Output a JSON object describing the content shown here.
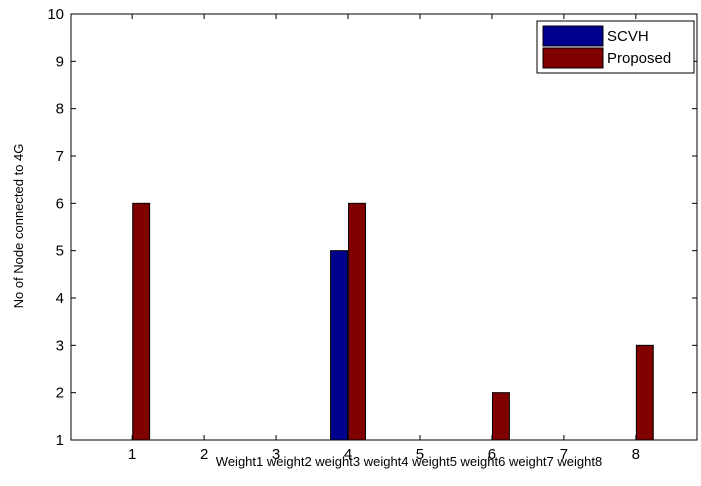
{
  "chart_data": {
    "type": "bar",
    "x": [
      1,
      2,
      3,
      4,
      5,
      6,
      7,
      8
    ],
    "xticks": [
      "1",
      "2",
      "3",
      "4",
      "5",
      "6",
      "7",
      "8"
    ],
    "xlabel": "Weight1 weight2 weight3 weight4 weight5 weight6 weight7 weight8",
    "ylabel": "No of Node connected to 4G",
    "ylim": [
      1,
      10
    ],
    "yticks": [
      1,
      2,
      3,
      4,
      5,
      6,
      7,
      8,
      9,
      10
    ],
    "xlim": [
      0.15,
      8.85
    ],
    "grid": false,
    "legend_position": "top-right",
    "series": [
      {
        "name": "SCVH",
        "color": "#00008f",
        "values": [
          1,
          1,
          1,
          5,
          1,
          1,
          1,
          1
        ]
      },
      {
        "name": "Proposed",
        "color": "#800000",
        "values": [
          6,
          1,
          1,
          6,
          1,
          2,
          1,
          3
        ]
      }
    ]
  }
}
